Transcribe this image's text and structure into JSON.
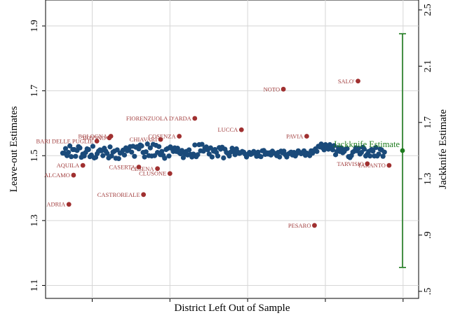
{
  "chart_data": {
    "type": "scatter",
    "xlabel": "District Left Out of Sample",
    "ylabel": "Leave-out Estimates",
    "ylabel_right": "Jackknife Estimate",
    "ylim": [
      1.06,
      1.98
    ],
    "yticks": [
      1.1,
      1.3,
      1.5,
      1.7,
      1.9
    ],
    "ytick_labels": [
      "1.1",
      "1.3",
      "1.5",
      "1.7",
      "1.9"
    ],
    "y2lim": [
      0.45,
      2.57
    ],
    "y2ticks": [
      0.5,
      0.9,
      1.3,
      1.7,
      2.1,
      2.5
    ],
    "y2tick_labels": [
      ".5",
      ".9",
      "1.3",
      "1.7",
      "2.1",
      "2.5"
    ],
    "xlim": [
      -10,
      230
    ],
    "grid": true,
    "colors": {
      "points": "#1a4a7a",
      "outliers": "#a03030",
      "jackknife": "#1e7b1e",
      "grid": "#d6d6d6"
    },
    "series": [
      {
        "values": [
          1.508,
          1.508,
          1.522,
          1.5,
          1.51,
          1.53,
          1.497,
          1.519,
          1.519,
          1.498,
          1.516,
          1.528,
          1.524,
          1.495,
          1.505,
          1.499,
          1.51,
          1.521,
          1.519,
          1.497,
          1.502,
          1.529,
          1.493,
          1.495,
          1.506,
          1.514,
          1.518,
          1.515,
          1.5,
          1.523,
          1.514,
          1.507,
          1.493,
          1.527,
          1.499,
          1.511,
          1.514,
          1.492,
          1.518,
          1.491,
          1.508,
          1.51,
          1.517,
          1.502,
          1.524,
          1.515,
          1.522,
          1.528,
          1.511,
          1.529,
          1.498,
          1.526,
          1.528,
          1.521,
          1.533,
          1.53,
          1.51,
          1.496,
          1.512,
          1.536,
          1.5,
          1.524,
          1.499,
          1.535,
          1.5,
          1.532,
          1.51,
          1.528,
          1.503,
          1.513,
          1.501,
          1.492,
          1.519,
          1.522,
          1.499,
          1.527,
          1.522,
          1.513,
          1.524,
          1.513,
          1.523,
          1.51,
          1.506,
          1.516,
          1.494,
          1.506,
          1.513,
          1.502,
          1.518,
          1.504,
          1.496,
          1.505,
          1.533,
          1.497,
          1.503,
          1.534,
          1.515,
          1.535,
          1.514,
          1.523,
          1.527,
          1.518,
          1.505,
          1.524,
          1.496,
          1.514,
          1.519,
          1.51,
          1.499,
          1.525,
          1.52,
          1.526,
          1.493,
          1.52,
          1.51,
          1.507,
          1.499,
          1.511,
          1.523,
          1.513,
          1.503,
          1.521,
          1.511,
          1.507,
          1.509,
          1.513,
          1.511,
          1.505,
          1.496,
          1.504,
          1.51,
          1.504,
          1.507,
          1.513,
          1.508,
          1.498,
          1.511,
          1.499,
          1.497,
          1.515,
          1.516,
          1.504,
          1.509,
          1.505,
          1.509,
          1.502,
          1.514,
          1.508,
          1.507,
          1.5,
          1.51,
          1.496,
          1.514,
          1.509,
          1.514,
          1.503,
          1.496,
          1.505,
          1.508,
          1.511,
          1.502,
          1.51,
          1.499,
          1.507,
          1.515,
          1.51,
          1.506,
          1.51,
          1.515,
          1.501,
          1.508,
          1.506,
          1.5,
          1.515,
          1.508,
          1.516,
          1.521,
          1.513,
          1.529,
          1.527,
          1.536,
          1.524,
          1.518,
          1.534,
          1.525,
          1.52,
          1.534,
          1.528,
          1.518,
          1.531,
          1.503,
          1.513,
          1.524,
          1.513,
          1.524,
          1.509,
          1.513,
          1.52,
          1.522,
          1.497,
          1.494,
          1.5,
          1.511,
          1.514,
          1.524,
          1.515,
          1.523,
          1.505,
          1.51,
          1.526,
          1.52,
          1.499,
          1.504,
          1.513,
          1.499,
          1.519,
          1.514,
          1.499,
          1.525,
          1.499,
          1.505,
          1.52,
          1.518,
          1.498,
          1.511
        ]
      }
    ],
    "outliers": [
      {
        "label": "ADRIA",
        "x": 5,
        "y": 1.35
      },
      {
        "label": "AQUILA",
        "x": 14,
        "y": 1.47
      },
      {
        "label": "ALCAMO",
        "x": 8,
        "y": 1.44
      },
      {
        "label": "BARI DELLE PUGLIE",
        "x": 23,
        "y": 1.545
      },
      {
        "label": "BOLOGNA",
        "x": 32,
        "y": 1.56
      },
      {
        "label": "BOVINO",
        "x": 31,
        "y": 1.555
      },
      {
        "label": "CASERTA",
        "x": 50,
        "y": 1.465
      },
      {
        "label": "CESENA",
        "x": 62,
        "y": 1.46
      },
      {
        "label": "CLUSONE",
        "x": 70,
        "y": 1.445
      },
      {
        "label": "CASTROREALE",
        "x": 53,
        "y": 1.38
      },
      {
        "label": "CHIAVARI",
        "x": 64,
        "y": 1.55
      },
      {
        "label": "COSENZA",
        "x": 76,
        "y": 1.56
      },
      {
        "label": "FIORENZUOLA D'ARDA",
        "x": 86,
        "y": 1.615
      },
      {
        "label": "LUCCA",
        "x": 116,
        "y": 1.58
      },
      {
        "label": "NOTO",
        "x": 143,
        "y": 1.705
      },
      {
        "label": "PAVIA",
        "x": 158,
        "y": 1.56
      },
      {
        "label": "PESARO",
        "x": 163,
        "y": 1.285
      },
      {
        "label": "SALO'",
        "x": 191,
        "y": 1.73
      },
      {
        "label": "TARANTO",
        "x": 211,
        "y": 1.47
      },
      {
        "label": "TARVISIO",
        "x": 197,
        "y": 1.475
      }
    ],
    "jackknife": {
      "label": "Jackknife Estimate",
      "estimate": 1.5,
      "ci_low": 0.67,
      "ci_high": 2.33
    }
  }
}
